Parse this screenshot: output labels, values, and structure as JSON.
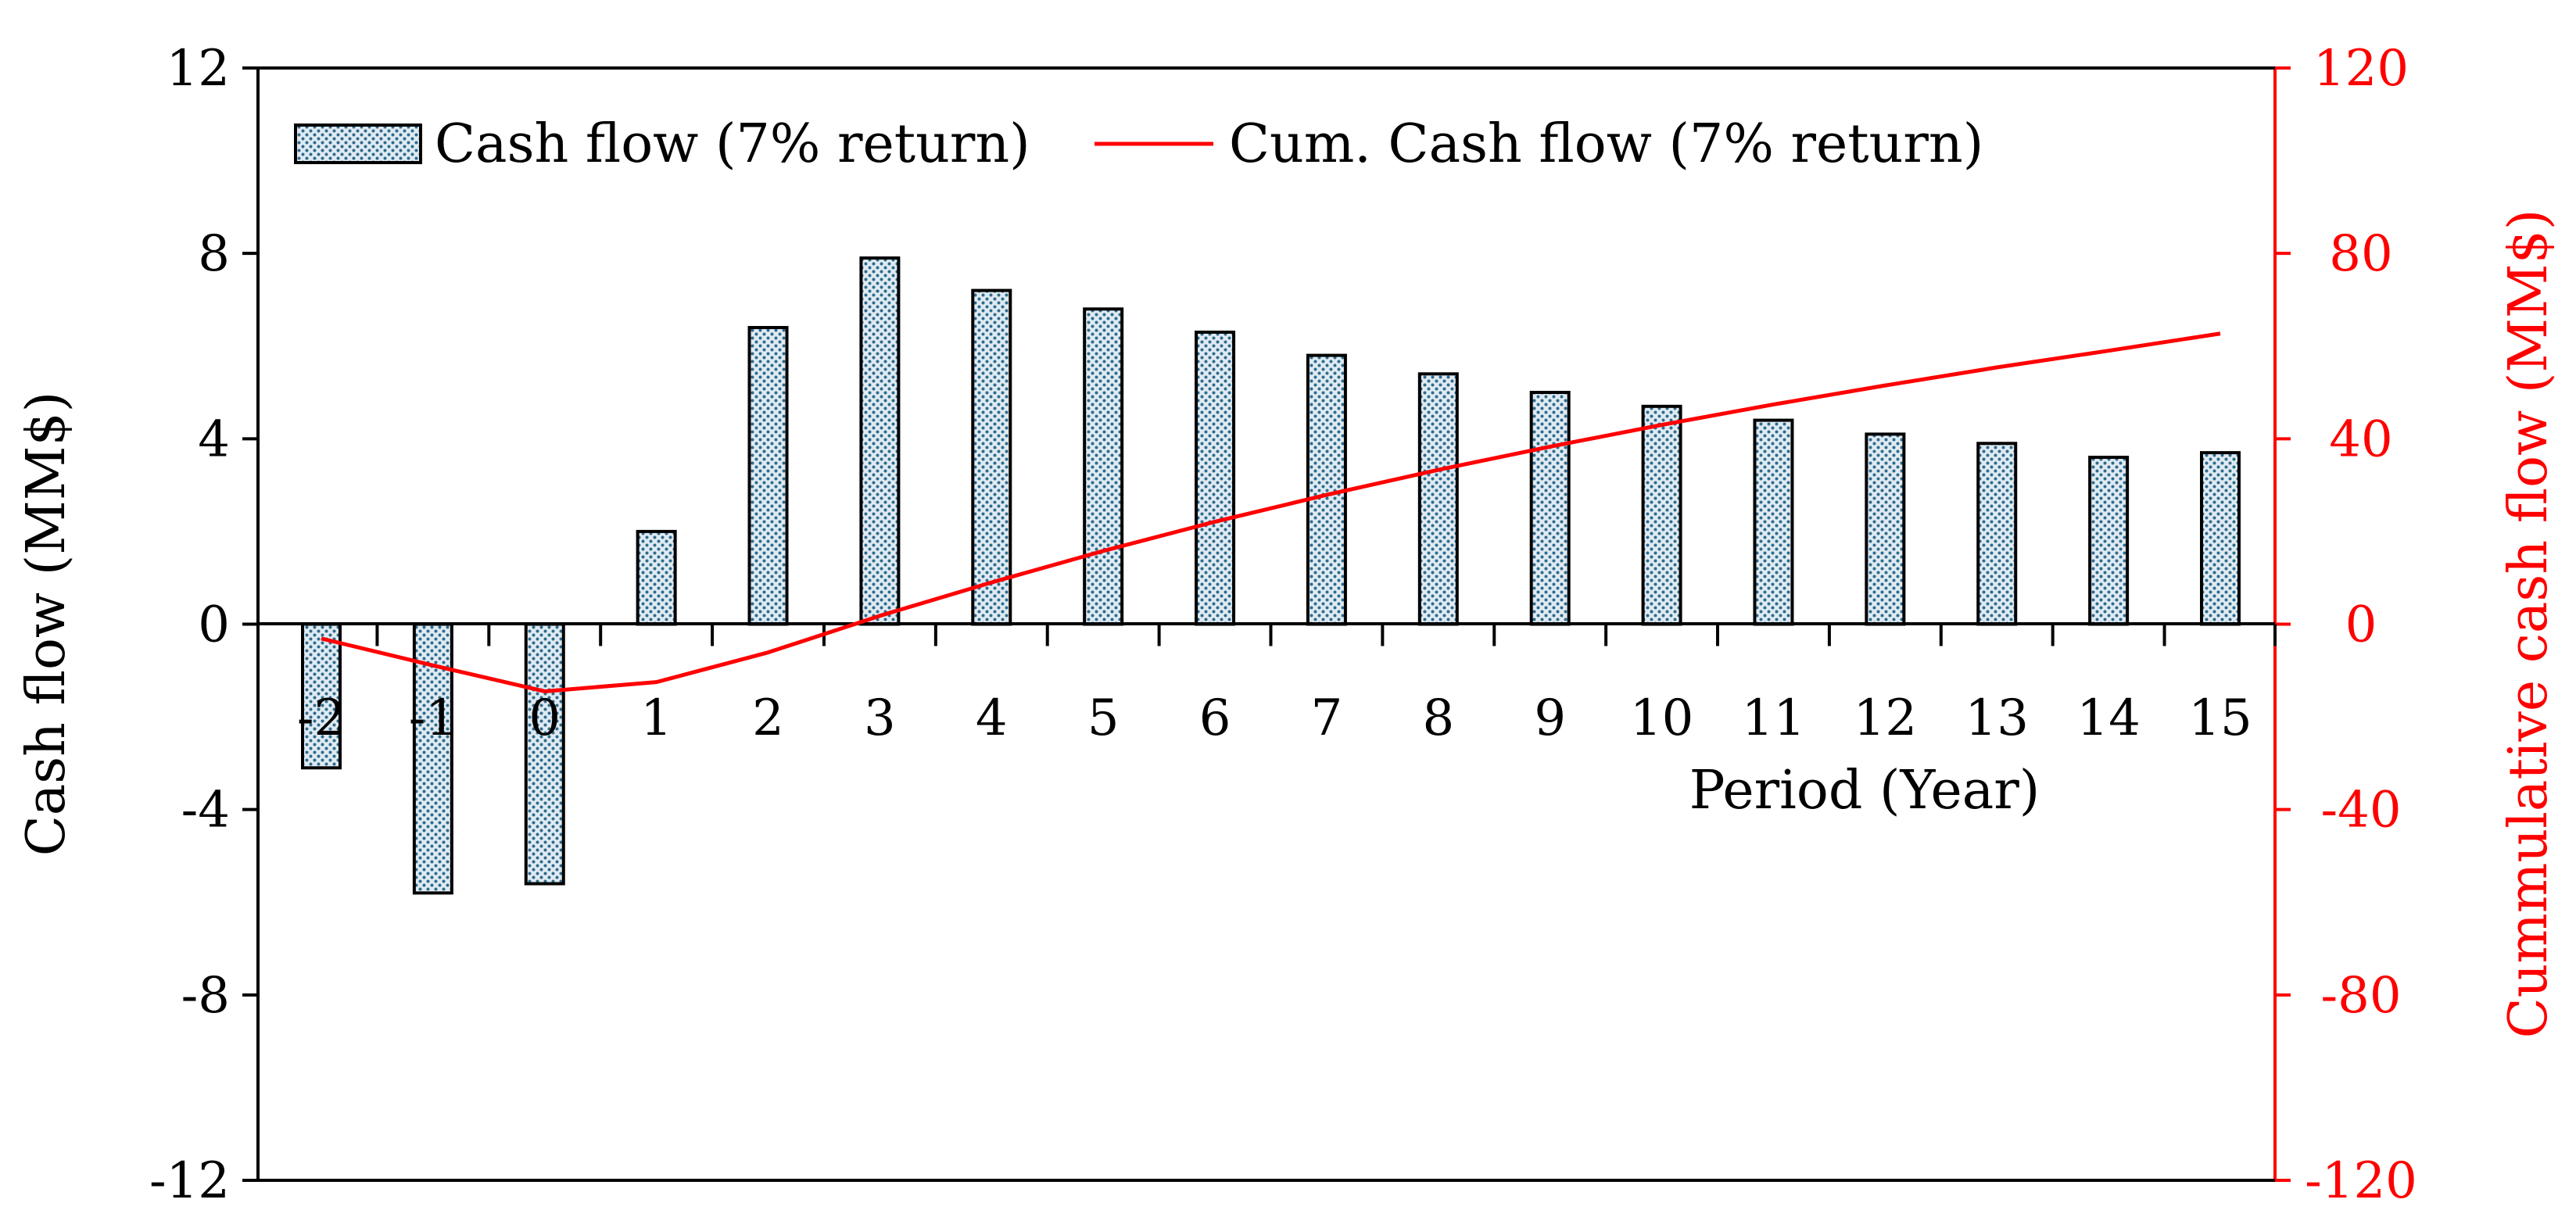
{
  "chart_data": {
    "type": "bar",
    "categories": [
      "-2",
      "-1",
      "0",
      "1",
      "2",
      "3",
      "4",
      "5",
      "6",
      "7",
      "8",
      "9",
      "10",
      "11",
      "12",
      "13",
      "14",
      "15"
    ],
    "series": [
      {
        "name": "Cash flow (7% return)",
        "type": "bar",
        "axis": "left",
        "values": [
          -3.1,
          -5.8,
          -5.6,
          2.0,
          6.4,
          7.9,
          7.2,
          6.8,
          6.3,
          5.8,
          5.4,
          5.0,
          4.7,
          4.4,
          4.1,
          3.9,
          3.6,
          3.7
        ]
      },
      {
        "name": "Cum. Cash flow (7% return)",
        "type": "line",
        "axis": "right",
        "values": [
          -3.1,
          -8.9,
          -14.5,
          -12.5,
          -6.1,
          1.8,
          9.0,
          15.8,
          22.1,
          27.9,
          33.3,
          38.3,
          43.0,
          47.4,
          51.5,
          55.4,
          59.0,
          62.7
        ]
      }
    ],
    "xlabel": "Period (Year)",
    "ylabel": "Cash flow (MM$)",
    "y2label": "Cummulative cash flow (MM$)",
    "ylim": [
      -12,
      12
    ],
    "y2lim": [
      -120,
      120
    ],
    "yticks": [
      "-12",
      "-8",
      "-4",
      "0",
      "4",
      "8",
      "12"
    ],
    "y2ticks": [
      "-120",
      "-80",
      "-40",
      "0",
      "40",
      "80",
      "120"
    ],
    "legend_position": "top-left",
    "grid": false,
    "colors": {
      "bar_fill": "#dfeaf2",
      "bar_pattern": "#2f6a8c",
      "bar_stroke": "#000000",
      "line": "#ff0000",
      "right_axis": "#ff0000"
    }
  }
}
